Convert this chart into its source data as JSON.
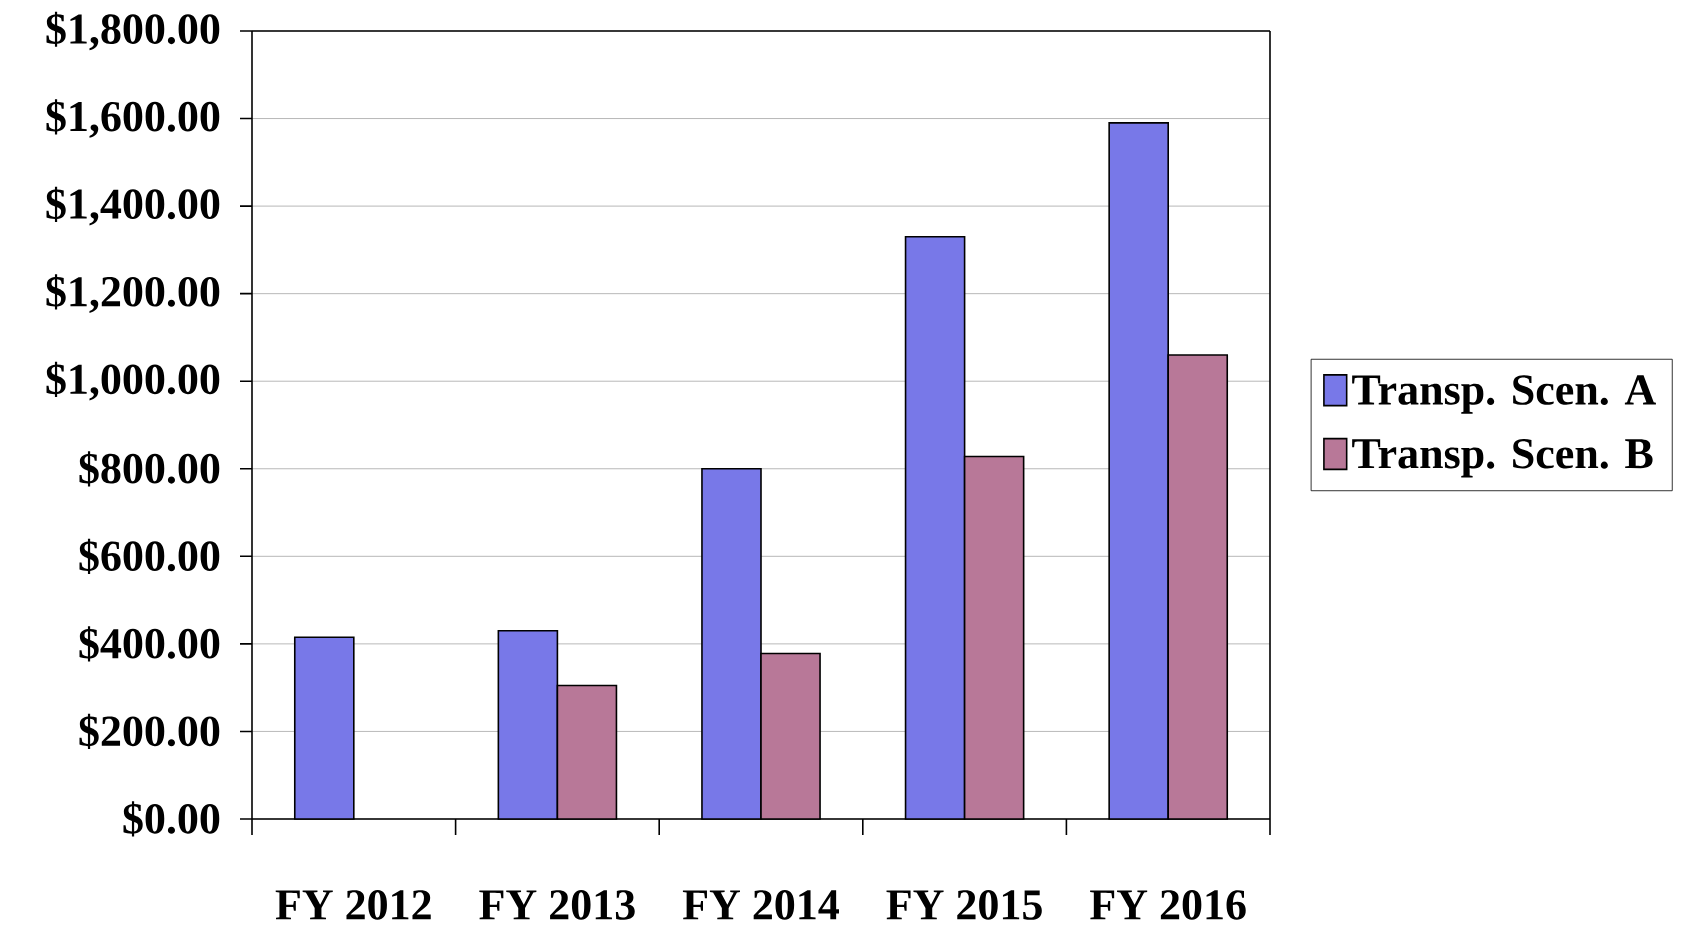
{
  "chart_data": {
    "type": "bar",
    "categories": [
      "FY 2012",
      "FY 2013",
      "FY 2014",
      "FY 2015",
      "FY 2016"
    ],
    "series": [
      {
        "name": "Transp. Scen. A",
        "color": "#7878e8",
        "values": [
          415,
          430,
          800,
          1330,
          1590
        ]
      },
      {
        "name": "Transp. Scen. B",
        "color": "#b87898",
        "values": [
          null,
          305,
          378,
          828,
          1060
        ]
      }
    ],
    "ylim": [
      0,
      1800
    ],
    "yticks": [
      {
        "value": 0,
        "label": "$0.00"
      },
      {
        "value": 200,
        "label": "$200.00"
      },
      {
        "value": 400,
        "label": "$400.00"
      },
      {
        "value": 600,
        "label": "$600.00"
      },
      {
        "value": 800,
        "label": "$800.00"
      },
      {
        "value": 1000,
        "label": "$1,000.00"
      },
      {
        "value": 1200,
        "label": "$1,200.00"
      },
      {
        "value": 1400,
        "label": "$1,400.00"
      },
      {
        "value": 1600,
        "label": "$1,600.00"
      },
      {
        "value": 1800,
        "label": "$1,800.00"
      }
    ],
    "grid": "y",
    "legend": "right"
  }
}
